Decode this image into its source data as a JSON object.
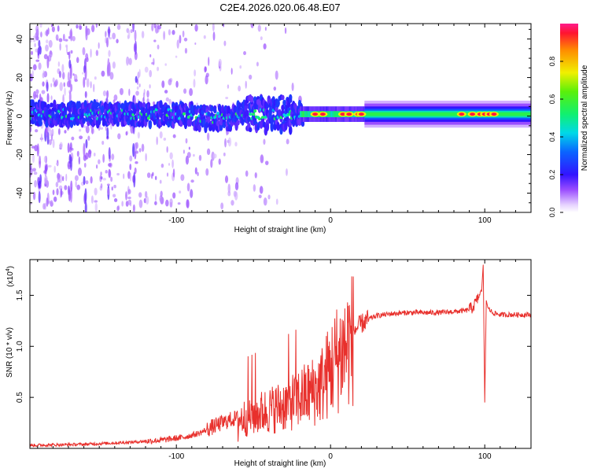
{
  "title": "C2E4.2026.020.06.48.E07",
  "chart_data": [
    {
      "type": "heatmap",
      "title": "C2E4.2026.020.06.48.E07",
      "xlabel": "Height of straight line (km)",
      "ylabel": "Frequency (Hz)",
      "xlim": [
        -195,
        130
      ],
      "ylim": [
        -50,
        48
      ],
      "xticks": [
        -100,
        0,
        100
      ],
      "xtick_labels": [
        "-100",
        "0",
        "100"
      ],
      "yticks": [
        -40,
        -20,
        0,
        20,
        40
      ],
      "ytick_labels": [
        "-40",
        "-20",
        "0",
        "20",
        "40"
      ],
      "colorbar": {
        "label": "Normalized spectral amplitude",
        "range": [
          0.0,
          1.0
        ],
        "ticks": [
          0.0,
          0.2,
          0.4,
          0.6,
          0.8
        ],
        "tick_labels": [
          "0.0",
          "0.2",
          "0.4",
          "0.6",
          "0.8"
        ]
      },
      "band": {
        "center_hz": 1,
        "halfwidth_hz": 4,
        "noisy_segment_km": [
          -195,
          -20
        ],
        "smooth_segment_km": [
          22,
          130
        ],
        "hot_spots_km": [
          -10,
          -5,
          8,
          12,
          18,
          20,
          85,
          92,
          97,
          100,
          103,
          106
        ]
      }
    },
    {
      "type": "line",
      "title": "",
      "xlabel": "Height of straight line (km)",
      "ylabel": "SNR (10 * v/v)",
      "y_multiplier_label": "(x10",
      "y_multiplier_exponent": "4",
      "y_multiplier_close": ")",
      "xlim": [
        -195,
        130
      ],
      "ylim": [
        0,
        1.85
      ],
      "xticks": [
        -100,
        0,
        100
      ],
      "xtick_labels": [
        "-100",
        "0",
        "100"
      ],
      "yticks": [
        0.5,
        1.0,
        1.5
      ],
      "ytick_labels": [
        "0.5",
        "1.0",
        "1.5"
      ],
      "series": [
        {
          "name": "SNR",
          "color": "#e8302c",
          "x": [
            -195,
            -160,
            -130,
            -110,
            -95,
            -85,
            -75,
            -65,
            -55,
            -45,
            -35,
            -28,
            -20,
            -10,
            -5,
            0,
            5,
            10,
            15,
            20,
            25,
            30,
            40,
            50,
            60,
            70,
            80,
            88,
            92,
            95,
            98,
            99,
            100,
            101,
            102,
            105,
            110,
            120,
            130
          ],
          "values": [
            0.03,
            0.04,
            0.06,
            0.08,
            0.11,
            0.15,
            0.22,
            0.28,
            0.32,
            0.37,
            0.42,
            0.46,
            0.52,
            0.6,
            0.68,
            0.82,
            0.95,
            1.05,
            1.15,
            1.22,
            1.27,
            1.3,
            1.32,
            1.33,
            1.33,
            1.33,
            1.34,
            1.35,
            1.38,
            1.45,
            1.55,
            1.8,
            0.45,
            1.45,
            1.38,
            1.33,
            1.31,
            1.31,
            1.31
          ]
        }
      ]
    }
  ],
  "colors": {
    "line": "#e8302c",
    "background": "#ffffff",
    "axis": "#000000"
  }
}
